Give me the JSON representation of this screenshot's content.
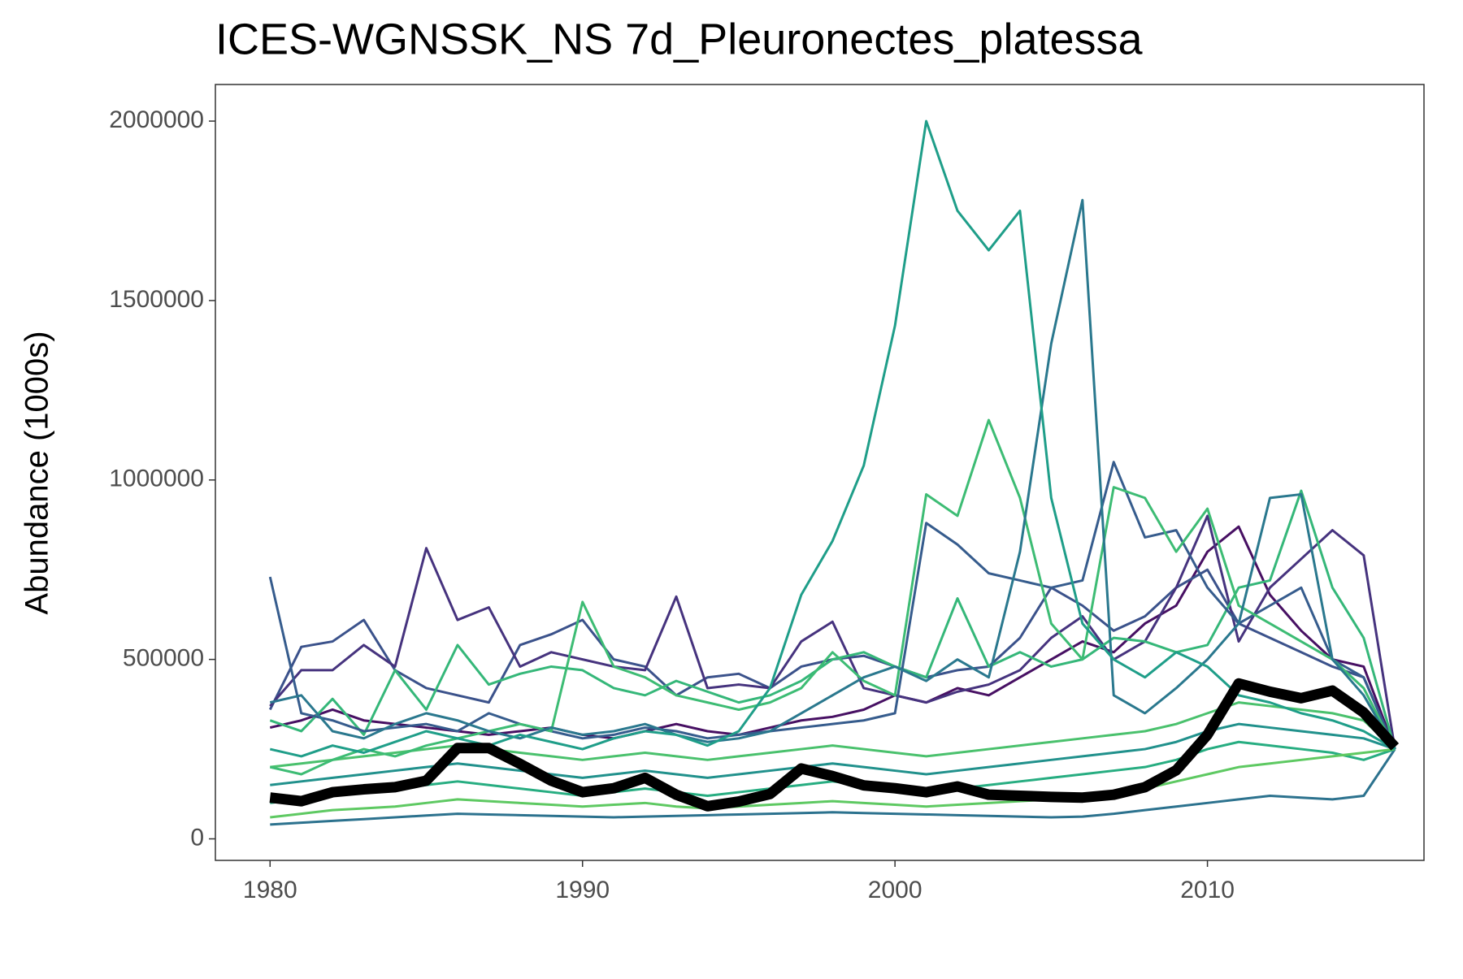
{
  "chart_data": {
    "type": "line",
    "title": "ICES-WGNSSK_NS 7d_Pleuronectes_platessa",
    "y_label": "Abundance (1000s)",
    "x": [
      1980,
      1981,
      1982,
      1983,
      1984,
      1985,
      1986,
      1987,
      1988,
      1989,
      1990,
      1991,
      1992,
      1993,
      1994,
      1995,
      1996,
      1997,
      1998,
      1999,
      2000,
      2001,
      2002,
      2003,
      2004,
      2005,
      2006,
      2007,
      2008,
      2009,
      2010,
      2011,
      2012,
      2013,
      2014,
      2015,
      2016
    ],
    "xlim": [
      1978.25,
      2016.93
    ],
    "xticks": [
      1980,
      1990,
      2000,
      2010
    ],
    "ylim": [
      -60000,
      2102000
    ],
    "yticks": [
      0,
      500000,
      1000000,
      1500000,
      2000000
    ],
    "grid": false,
    "series": [
      {
        "color": "#2c728e",
        "values": [
          40000,
          45000,
          50000,
          55000,
          60000,
          65000,
          70000,
          68000,
          66000,
          64000,
          62000,
          60000,
          62000,
          64000,
          66000,
          68000,
          70000,
          72000,
          74000,
          72000,
          70000,
          68000,
          66000,
          64000,
          62000,
          60000,
          62000,
          70000,
          80000,
          90000,
          100000,
          110000,
          120000,
          115000,
          110000,
          120000,
          250000
        ]
      },
      {
        "color": "#21918c",
        "values": [
          150000,
          160000,
          170000,
          180000,
          190000,
          200000,
          210000,
          200000,
          190000,
          180000,
          170000,
          180000,
          190000,
          180000,
          170000,
          180000,
          190000,
          200000,
          210000,
          200000,
          190000,
          180000,
          190000,
          200000,
          210000,
          220000,
          230000,
          240000,
          250000,
          270000,
          300000,
          320000,
          310000,
          300000,
          290000,
          280000,
          250000
        ]
      },
      {
        "color": "#27ad81",
        "values": [
          100000,
          110000,
          120000,
          130000,
          140000,
          150000,
          160000,
          150000,
          140000,
          130000,
          120000,
          130000,
          140000,
          130000,
          120000,
          130000,
          140000,
          150000,
          160000,
          150000,
          140000,
          130000,
          140000,
          150000,
          160000,
          170000,
          180000,
          190000,
          200000,
          220000,
          250000,
          270000,
          260000,
          250000,
          240000,
          220000,
          250000
        ]
      },
      {
        "color": "#4ac16d",
        "values": [
          200000,
          210000,
          220000,
          230000,
          240000,
          250000,
          260000,
          250000,
          240000,
          230000,
          220000,
          230000,
          240000,
          230000,
          220000,
          230000,
          240000,
          250000,
          260000,
          250000,
          240000,
          230000,
          240000,
          250000,
          260000,
          270000,
          280000,
          290000,
          300000,
          320000,
          350000,
          380000,
          370000,
          360000,
          350000,
          330000,
          250000
        ]
      },
      {
        "color": "#5ec962",
        "values": [
          60000,
          70000,
          80000,
          85000,
          90000,
          100000,
          110000,
          105000,
          100000,
          95000,
          90000,
          95000,
          100000,
          90000,
          85000,
          90000,
          95000,
          100000,
          105000,
          100000,
          95000,
          90000,
          95000,
          100000,
          105000,
          110000,
          120000,
          130000,
          140000,
          160000,
          180000,
          200000,
          210000,
          220000,
          230000,
          240000,
          250000
        ]
      },
      {
        "color": "#471063",
        "values": [
          310000,
          330000,
          360000,
          330000,
          320000,
          310000,
          300000,
          290000,
          300000,
          310000,
          290000,
          280000,
          300000,
          320000,
          300000,
          290000,
          310000,
          330000,
          340000,
          360000,
          400000,
          380000,
          420000,
          400000,
          450000,
          500000,
          550000,
          520000,
          600000,
          650000,
          800000,
          870000,
          680000,
          580000,
          500000,
          480000,
          250000
        ]
      },
      {
        "color": "#3b528b",
        "values": [
          360000,
          535000,
          550000,
          610000,
          470000,
          420000,
          400000,
          380000,
          540000,
          570000,
          610000,
          500000,
          480000,
          400000,
          450000,
          460000,
          420000,
          480000,
          500000,
          510000,
          480000,
          450000,
          470000,
          480000,
          560000,
          700000,
          650000,
          580000,
          620000,
          700000,
          750000,
          600000,
          560000,
          520000,
          480000,
          450000,
          250000
        ]
      },
      {
        "color": "#46337e",
        "values": [
          370000,
          470000,
          470000,
          540000,
          480000,
          810000,
          610000,
          645000,
          480000,
          520000,
          500000,
          480000,
          470000,
          675000,
          420000,
          430000,
          420000,
          550000,
          605000,
          420000,
          400000,
          380000,
          410000,
          430000,
          470000,
          560000,
          620000,
          500000,
          550000,
          700000,
          900000,
          550000,
          700000,
          780000,
          860000,
          790000,
          250000
        ]
      },
      {
        "color": "#35b779",
        "values": [
          330000,
          300000,
          390000,
          290000,
          470000,
          360000,
          540000,
          430000,
          460000,
          480000,
          470000,
          420000,
          400000,
          440000,
          410000,
          380000,
          400000,
          440000,
          500000,
          520000,
          480000,
          450000,
          670000,
          480000,
          520000,
          480000,
          500000,
          560000,
          550000,
          520000,
          540000,
          700000,
          720000,
          970000,
          700000,
          560000,
          250000
        ]
      },
      {
        "color": "#365c8d",
        "values": [
          730000,
          350000,
          330000,
          300000,
          310000,
          320000,
          300000,
          350000,
          320000,
          300000,
          280000,
          290000,
          310000,
          300000,
          280000,
          290000,
          300000,
          310000,
          320000,
          330000,
          350000,
          880000,
          820000,
          740000,
          720000,
          700000,
          720000,
          1050000,
          840000,
          860000,
          700000,
          600000,
          650000,
          700000,
          500000,
          450000,
          250000
        ]
      },
      {
        "color": "#3dbc74",
        "values": [
          200000,
          180000,
          220000,
          250000,
          230000,
          260000,
          280000,
          300000,
          320000,
          300000,
          660000,
          480000,
          450000,
          400000,
          380000,
          360000,
          380000,
          420000,
          520000,
          440000,
          400000,
          960000,
          900000,
          1167000,
          950000,
          600000,
          500000,
          980000,
          950000,
          800000,
          920000,
          650000,
          600000,
          550000,
          500000,
          420000,
          250000
        ]
      },
      {
        "color": "#2a788e",
        "values": [
          380000,
          400000,
          300000,
          280000,
          320000,
          350000,
          330000,
          300000,
          280000,
          310000,
          290000,
          300000,
          320000,
          290000,
          270000,
          280000,
          300000,
          350000,
          400000,
          450000,
          480000,
          440000,
          500000,
          450000,
          800000,
          1380000,
          1780000,
          400000,
          350000,
          420000,
          500000,
          600000,
          950000,
          960000,
          500000,
          400000,
          250000
        ]
      },
      {
        "color": "#1f9e89",
        "values": [
          250000,
          230000,
          260000,
          240000,
          270000,
          300000,
          280000,
          260000,
          290000,
          270000,
          250000,
          280000,
          300000,
          290000,
          260000,
          300000,
          420000,
          680000,
          830000,
          1040000,
          1430000,
          2000000,
          1750000,
          1640000,
          1750000,
          950000,
          600000,
          500000,
          450000,
          520000,
          480000,
          400000,
          380000,
          350000,
          330000,
          300000,
          250000
        ]
      },
      {
        "color": "#000000",
        "values": [
          115000,
          105000,
          130000,
          138000,
          144000,
          162000,
          253000,
          253000,
          209000,
          162000,
          130000,
          141000,
          170000,
          123000,
          91000,
          104000,
          125000,
          196000,
          175000,
          149000,
          141000,
          130000,
          146000,
          123000,
          120000,
          117000,
          115000,
          123000,
          144000,
          191000,
          290000,
          433000,
          410000,
          392000,
          413000,
          352000,
          256000
        ]
      }
    ]
  }
}
